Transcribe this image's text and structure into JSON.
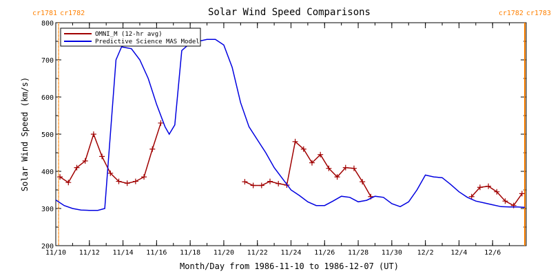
{
  "chart_data": {
    "type": "line",
    "title": "Solar Wind Speed Comparisons",
    "xlabel": "Month/Day from 1986-11-10 to 1986-12-07 (UT)",
    "ylabel": "Solar Wind Speed (km/s)",
    "xlim": [
      "1986-11-10",
      "1986-12-08"
    ],
    "ylim": [
      200,
      800
    ],
    "x_ticks": [
      {
        "date": "1986-11-10",
        "label": "11/10"
      },
      {
        "date": "1986-11-12",
        "label": "11/12"
      },
      {
        "date": "1986-11-14",
        "label": "11/14"
      },
      {
        "date": "1986-11-16",
        "label": "11/16"
      },
      {
        "date": "1986-11-18",
        "label": "11/18"
      },
      {
        "date": "1986-11-20",
        "label": "11/20"
      },
      {
        "date": "1986-11-22",
        "label": "11/22"
      },
      {
        "date": "1986-11-24",
        "label": "11/24"
      },
      {
        "date": "1986-11-26",
        "label": "11/26"
      },
      {
        "date": "1986-11-28",
        "label": "11/28"
      },
      {
        "date": "1986-11-30",
        "label": "11/30"
      },
      {
        "date": "1986-12-02",
        "label": "12/2"
      },
      {
        "date": "1986-12-04",
        "label": "12/4"
      },
      {
        "date": "1986-12-06",
        "label": "12/6"
      }
    ],
    "y_ticks": [
      200,
      300,
      400,
      500,
      600,
      700,
      800
    ],
    "grid": false,
    "legend_position": "top-left",
    "rotation_markers": [
      {
        "date": "1986-11-10T04:00",
        "left_label": "cr1781",
        "right_label": "cr1782",
        "color": "#ff8000",
        "style": "dotted"
      },
      {
        "date": "1986-12-07T22:00",
        "left_label": "cr1782",
        "right_label": "cr1783",
        "color": "#ff8000",
        "style": "solid"
      }
    ],
    "series": [
      {
        "name": "OMNI_M (12-hr avg)",
        "color": "#a00000",
        "marker": "plus",
        "segments": [
          [
            [
              "1986-11-10T06:00",
              385
            ],
            [
              "1986-11-10T18:00",
              370
            ],
            [
              "1986-11-11T06:00",
              410
            ],
            [
              "1986-11-11T18:00",
              428
            ],
            [
              "1986-11-12T06:00",
              500
            ],
            [
              "1986-11-12T18:00",
              440
            ],
            [
              "1986-11-13T06:00",
              395
            ],
            [
              "1986-11-13T18:00",
              373
            ],
            [
              "1986-11-14T06:00",
              368
            ],
            [
              "1986-11-14T18:00",
              373
            ],
            [
              "1986-11-15T06:00",
              385
            ],
            [
              "1986-11-15T18:00",
              460
            ],
            [
              "1986-11-16T06:00",
              530
            ]
          ],
          [
            [
              "1986-11-21T06:00",
              372
            ],
            [
              "1986-11-21T18:00",
              362
            ],
            [
              "1986-11-22T06:00",
              362
            ],
            [
              "1986-11-22T18:00",
              373
            ],
            [
              "1986-11-23T06:00",
              367
            ],
            [
              "1986-11-23T18:00",
              363
            ],
            [
              "1986-11-24T06:00",
              480
            ],
            [
              "1986-11-24T18:00",
              460
            ],
            [
              "1986-11-25T06:00",
              423
            ],
            [
              "1986-11-25T18:00",
              445
            ],
            [
              "1986-11-26T06:00",
              408
            ],
            [
              "1986-11-26T18:00",
              385
            ],
            [
              "1986-11-27T06:00",
              410
            ],
            [
              "1986-11-27T18:00",
              408
            ],
            [
              "1986-11-28T06:00",
              372
            ],
            [
              "1986-11-28T18:00",
              332
            ]
          ],
          [
            [
              "1986-12-04T18:00",
              332
            ],
            [
              "1986-12-05T06:00",
              357
            ],
            [
              "1986-12-05T18:00",
              360
            ],
            [
              "1986-12-06T06:00",
              345
            ],
            [
              "1986-12-06T18:00",
              320
            ],
            [
              "1986-12-07T06:00",
              308
            ],
            [
              "1986-12-07T18:00",
              340
            ]
          ]
        ]
      },
      {
        "name": "Predictive Science MAS Model",
        "color": "#0000e0",
        "marker": "none",
        "points": [
          [
            "1986-11-10T00:00",
            323
          ],
          [
            "1986-11-10T12:00",
            308
          ],
          [
            "1986-11-11T00:00",
            300
          ],
          [
            "1986-11-11T12:00",
            296
          ],
          [
            "1986-11-12T00:00",
            295
          ],
          [
            "1986-11-12T12:00",
            295
          ],
          [
            "1986-11-12T22:00",
            300
          ],
          [
            "1986-11-13T08:00",
            550
          ],
          [
            "1986-11-13T14:00",
            700
          ],
          [
            "1986-11-13T22:00",
            735
          ],
          [
            "1986-11-14T12:00",
            730
          ],
          [
            "1986-11-15T00:00",
            700
          ],
          [
            "1986-11-15T12:00",
            650
          ],
          [
            "1986-11-16T00:00",
            580
          ],
          [
            "1986-11-16T12:00",
            520
          ],
          [
            "1986-11-16T18:00",
            500
          ],
          [
            "1986-11-17T02:00",
            525
          ],
          [
            "1986-11-17T12:00",
            725
          ],
          [
            "1986-11-18T00:00",
            745
          ],
          [
            "1986-11-18T12:00",
            750
          ],
          [
            "1986-11-19T00:00",
            755
          ],
          [
            "1986-11-19T12:00",
            755
          ],
          [
            "1986-11-20T00:00",
            740
          ],
          [
            "1986-11-20T12:00",
            680
          ],
          [
            "1986-11-21T00:00",
            585
          ],
          [
            "1986-11-21T12:00",
            520
          ],
          [
            "1986-11-22T00:00",
            485
          ],
          [
            "1986-11-22T12:00",
            450
          ],
          [
            "1986-11-23T00:00",
            410
          ],
          [
            "1986-11-23T12:00",
            380
          ],
          [
            "1986-11-24T00:00",
            350
          ],
          [
            "1986-11-24T12:00",
            335
          ],
          [
            "1986-11-25T00:00",
            318
          ],
          [
            "1986-11-25T12:00",
            308
          ],
          [
            "1986-11-26T00:00",
            308
          ],
          [
            "1986-11-26T12:00",
            320
          ],
          [
            "1986-11-27T00:00",
            333
          ],
          [
            "1986-11-27T12:00",
            330
          ],
          [
            "1986-11-28T00:00",
            318
          ],
          [
            "1986-11-28T12:00",
            322
          ],
          [
            "1986-11-29T00:00",
            333
          ],
          [
            "1986-11-29T12:00",
            330
          ],
          [
            "1986-11-30T00:00",
            313
          ],
          [
            "1986-11-30T12:00",
            305
          ],
          [
            "1986-12-01T00:00",
            318
          ],
          [
            "1986-12-01T12:00",
            350
          ],
          [
            "1986-12-02T00:00",
            390
          ],
          [
            "1986-12-02T12:00",
            385
          ],
          [
            "1986-12-03T00:00",
            383
          ],
          [
            "1986-12-03T12:00",
            365
          ],
          [
            "1986-12-04T00:00",
            345
          ],
          [
            "1986-12-04T12:00",
            330
          ],
          [
            "1986-12-05T00:00",
            320
          ],
          [
            "1986-12-05T12:00",
            315
          ],
          [
            "1986-12-06T00:00",
            310
          ],
          [
            "1986-12-06T12:00",
            305
          ],
          [
            "1986-12-07T00:00",
            304
          ],
          [
            "1986-12-07T12:00",
            304
          ],
          [
            "1986-12-07T22:00",
            303
          ]
        ]
      }
    ]
  }
}
